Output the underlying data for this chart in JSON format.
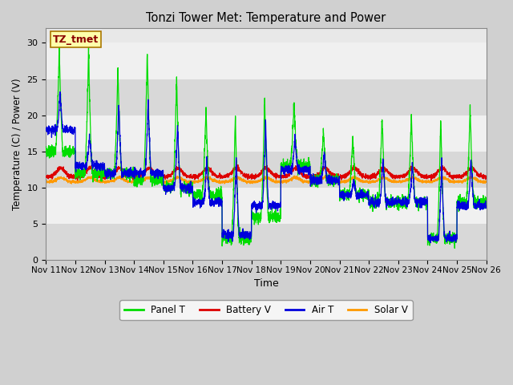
{
  "title": "Tonzi Tower Met: Temperature and Power",
  "xlabel": "Time",
  "ylabel": "Temperature (C) / Power (V)",
  "ylim": [
    0,
    32
  ],
  "yticks": [
    0,
    5,
    10,
    15,
    20,
    25,
    30
  ],
  "x_start": 0,
  "x_end": 15,
  "num_points": 3600,
  "panel_T_color": "#00dd00",
  "battery_V_color": "#dd0000",
  "air_T_color": "#0000dd",
  "solar_V_color": "#ff9900",
  "legend_label_panel": "Panel T",
  "legend_label_battery": "Battery V",
  "legend_label_air": "Air T",
  "legend_label_solar": "Solar V",
  "annotation_text": "TZ_tmet",
  "x_tick_labels": [
    "Nov 11",
    "Nov 12",
    "Nov 13",
    "Nov 14",
    "Nov 15",
    "Nov 16",
    "Nov 17",
    "Nov 18",
    "Nov 19",
    "Nov 20",
    "Nov 21",
    "Nov 22",
    "Nov 23",
    "Nov 24",
    "Nov 25",
    "Nov 26"
  ],
  "x_tick_positions": [
    0,
    1,
    2,
    3,
    4,
    5,
    6,
    7,
    8,
    9,
    10,
    11,
    12,
    13,
    14,
    15
  ],
  "figsize": [
    6.4,
    4.8
  ],
  "dpi": 100
}
